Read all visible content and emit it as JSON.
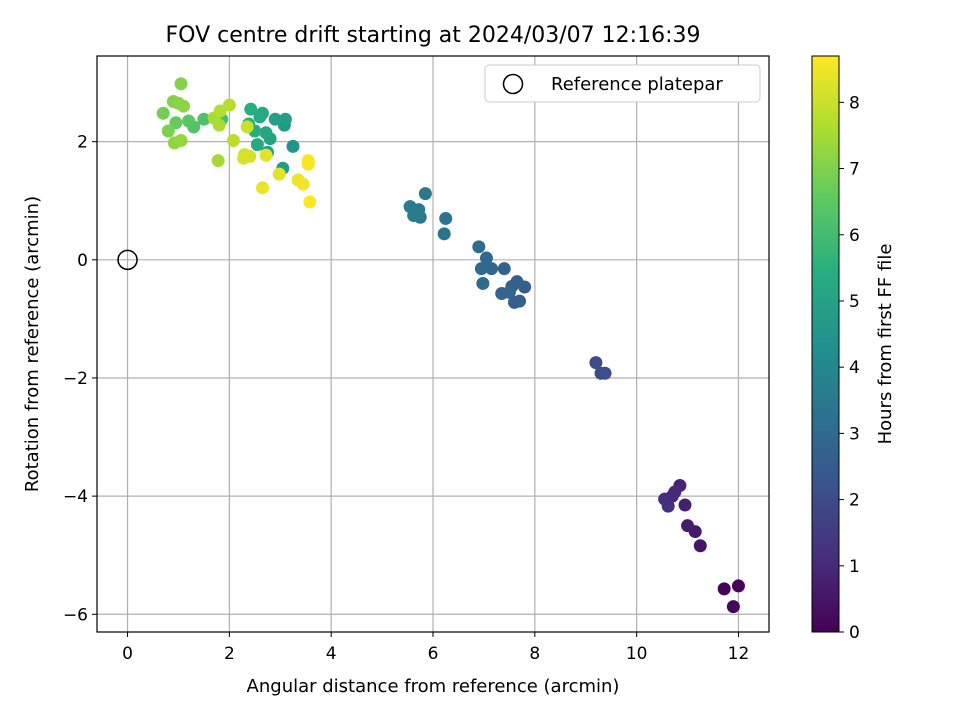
{
  "chart_data": {
    "type": "scatter",
    "title": "FOV centre drift starting at 2024/03/07 12:16:39",
    "xlabel": "Angular distance from reference (arcmin)",
    "ylabel": "Rotation from reference (arcmin)",
    "xlim": [
      -0.6,
      12.6
    ],
    "ylim": [
      -6.3,
      3.45
    ],
    "xticks": [
      0,
      2,
      4,
      6,
      8,
      10,
      12
    ],
    "yticks": [
      -6,
      -4,
      -2,
      0,
      2
    ],
    "grid": true,
    "legend": {
      "position": "top-right",
      "entries": [
        "Reference platepar"
      ]
    },
    "colorbar": {
      "label": "Hours from first FF file",
      "colormap": "viridis",
      "range": [
        0,
        8.7
      ],
      "ticks": [
        0,
        1,
        2,
        3,
        4,
        5,
        6,
        7,
        8
      ]
    },
    "reference_point": {
      "x": 0,
      "y": 0
    },
    "series": [
      {
        "points": [
          {
            "x": 12.0,
            "y": -5.52,
            "c": 0.05
          },
          {
            "x": 11.72,
            "y": -5.57,
            "c": 0.1
          },
          {
            "x": 11.9,
            "y": -5.87,
            "c": 0.15
          },
          {
            "x": 11.25,
            "y": -4.84,
            "c": 0.5
          },
          {
            "x": 11.15,
            "y": -4.6,
            "c": 0.6
          },
          {
            "x": 11.0,
            "y": -4.5,
            "c": 0.7
          },
          {
            "x": 10.95,
            "y": -4.15,
            "c": 0.8
          },
          {
            "x": 10.85,
            "y": -3.82,
            "c": 0.9
          },
          {
            "x": 10.75,
            "y": -3.93,
            "c": 1.0
          },
          {
            "x": 10.7,
            "y": -4.0,
            "c": 1.05
          },
          {
            "x": 10.55,
            "y": -4.05,
            "c": 1.1
          },
          {
            "x": 10.62,
            "y": -4.17,
            "c": 1.15
          },
          {
            "x": 9.2,
            "y": -1.74,
            "c": 2.0
          },
          {
            "x": 9.3,
            "y": -1.92,
            "c": 2.05
          },
          {
            "x": 9.38,
            "y": -1.92,
            "c": 2.1
          },
          {
            "x": 7.8,
            "y": -0.46,
            "c": 2.55
          },
          {
            "x": 7.7,
            "y": -0.7,
            "c": 2.6
          },
          {
            "x": 7.6,
            "y": -0.72,
            "c": 2.62
          },
          {
            "x": 7.65,
            "y": -0.37,
            "c": 2.65
          },
          {
            "x": 7.55,
            "y": -0.45,
            "c": 2.7
          },
          {
            "x": 7.5,
            "y": -0.55,
            "c": 2.72
          },
          {
            "x": 7.4,
            "y": -0.15,
            "c": 2.75
          },
          {
            "x": 7.35,
            "y": -0.57,
            "c": 2.8
          },
          {
            "x": 7.15,
            "y": -0.15,
            "c": 2.85
          },
          {
            "x": 7.05,
            "y": 0.03,
            "c": 2.9
          },
          {
            "x": 6.95,
            "y": -0.15,
            "c": 2.95
          },
          {
            "x": 6.98,
            "y": -0.4,
            "c": 3.0
          },
          {
            "x": 6.9,
            "y": 0.22,
            "c": 3.05
          },
          {
            "x": 6.25,
            "y": 0.7,
            "c": 3.3
          },
          {
            "x": 6.22,
            "y": 0.44,
            "c": 3.35
          },
          {
            "x": 5.85,
            "y": 1.12,
            "c": 3.45
          },
          {
            "x": 5.75,
            "y": 0.72,
            "c": 3.5
          },
          {
            "x": 5.72,
            "y": 0.85,
            "c": 3.55
          },
          {
            "x": 5.62,
            "y": 0.75,
            "c": 3.6
          },
          {
            "x": 5.55,
            "y": 0.9,
            "c": 3.65
          },
          {
            "x": 3.25,
            "y": 1.92,
            "c": 4.5
          },
          {
            "x": 3.08,
            "y": 2.28,
            "c": 4.7
          },
          {
            "x": 3.05,
            "y": 1.55,
            "c": 4.75
          },
          {
            "x": 3.1,
            "y": 2.38,
            "c": 4.8
          },
          {
            "x": 2.9,
            "y": 2.38,
            "c": 4.9
          },
          {
            "x": 2.8,
            "y": 2.05,
            "c": 5.0
          },
          {
            "x": 2.75,
            "y": 1.82,
            "c": 5.05
          },
          {
            "x": 2.72,
            "y": 2.15,
            "c": 5.1
          },
          {
            "x": 2.65,
            "y": 2.48,
            "c": 5.2
          },
          {
            "x": 2.6,
            "y": 2.42,
            "c": 5.25
          },
          {
            "x": 2.55,
            "y": 1.95,
            "c": 5.3
          },
          {
            "x": 2.5,
            "y": 2.18,
            "c": 5.4
          },
          {
            "x": 2.42,
            "y": 2.55,
            "c": 5.45
          },
          {
            "x": 2.38,
            "y": 2.3,
            "c": 5.5
          },
          {
            "x": 1.85,
            "y": 2.38,
            "c": 6.1
          },
          {
            "x": 1.5,
            "y": 2.38,
            "c": 6.2
          },
          {
            "x": 1.3,
            "y": 2.25,
            "c": 6.3
          },
          {
            "x": 1.2,
            "y": 2.35,
            "c": 6.4
          },
          {
            "x": 0.95,
            "y": 2.32,
            "c": 6.6
          },
          {
            "x": 0.7,
            "y": 2.48,
            "c": 6.8
          },
          {
            "x": 0.8,
            "y": 2.18,
            "c": 6.9
          },
          {
            "x": 0.9,
            "y": 2.68,
            "c": 7.0
          },
          {
            "x": 1.05,
            "y": 2.98,
            "c": 7.05
          },
          {
            "x": 1.0,
            "y": 2.65,
            "c": 7.1
          },
          {
            "x": 1.1,
            "y": 2.6,
            "c": 7.15
          },
          {
            "x": 0.92,
            "y": 1.98,
            "c": 7.2
          },
          {
            "x": 1.05,
            "y": 2.02,
            "c": 7.25
          },
          {
            "x": 1.78,
            "y": 1.68,
            "c": 7.5
          },
          {
            "x": 1.7,
            "y": 2.4,
            "c": 7.55
          },
          {
            "x": 1.8,
            "y": 2.28,
            "c": 7.6
          },
          {
            "x": 1.82,
            "y": 2.52,
            "c": 7.7
          },
          {
            "x": 2.0,
            "y": 2.62,
            "c": 7.75
          },
          {
            "x": 2.08,
            "y": 2.02,
            "c": 7.8
          },
          {
            "x": 2.35,
            "y": 2.25,
            "c": 8.0
          },
          {
            "x": 2.3,
            "y": 1.78,
            "c": 8.1
          },
          {
            "x": 2.4,
            "y": 1.75,
            "c": 8.15
          },
          {
            "x": 2.28,
            "y": 1.72,
            "c": 8.2
          },
          {
            "x": 2.72,
            "y": 1.77,
            "c": 8.3
          },
          {
            "x": 2.98,
            "y": 1.45,
            "c": 8.35
          },
          {
            "x": 2.65,
            "y": 1.22,
            "c": 8.45
          },
          {
            "x": 3.35,
            "y": 1.35,
            "c": 8.5
          },
          {
            "x": 3.45,
            "y": 1.28,
            "c": 8.55
          },
          {
            "x": 3.55,
            "y": 1.62,
            "c": 8.6
          },
          {
            "x": 3.55,
            "y": 1.68,
            "c": 8.62
          },
          {
            "x": 3.58,
            "y": 0.98,
            "c": 8.7
          }
        ]
      }
    ]
  }
}
